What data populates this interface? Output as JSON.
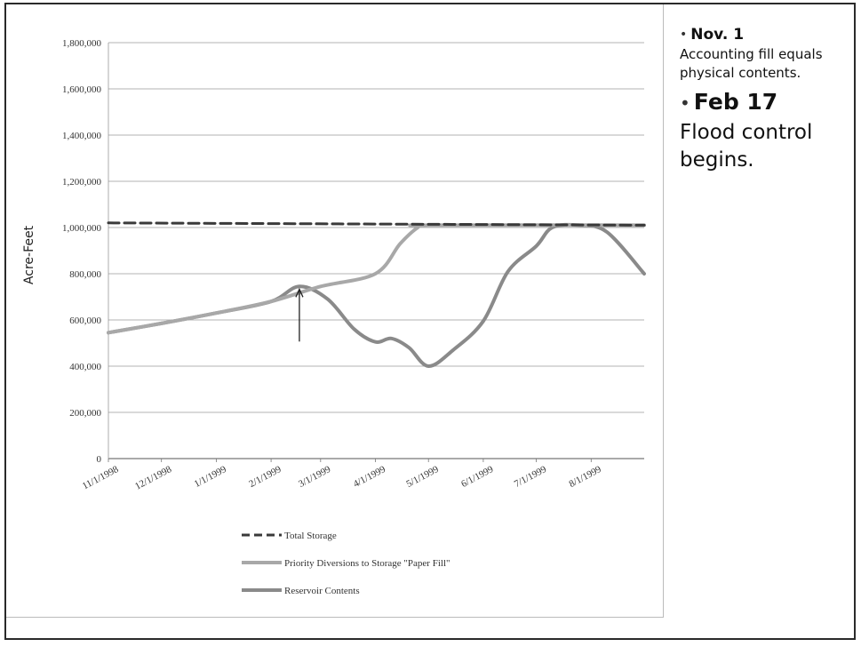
{
  "chart_data": {
    "type": "line",
    "title": "",
    "xlabel": "",
    "ylabel": "Acre-Feet",
    "ylim": [
      0,
      1800000
    ],
    "y_ticks": [
      0,
      200000,
      400000,
      600000,
      800000,
      1000000,
      1200000,
      1400000,
      1600000,
      1800000
    ],
    "y_tick_labels": [
      "0",
      "200,000",
      "400,000",
      "600,000",
      "800,000",
      "1,000,000",
      "1,200,000",
      "1,400,000",
      "1,600,000",
      "1,800,000"
    ],
    "x_tick_labels": [
      "11/1/1998",
      "12/1/1998",
      "1/1/1999",
      "2/1/1999",
      "3/1/1999",
      "4/1/1999",
      "5/1/1999",
      "6/1/1999",
      "7/1/1999",
      "8/1/1999"
    ],
    "x_range": [
      "1998-11-01",
      "1999-08-31"
    ],
    "grid": true,
    "legend_position": "bottom",
    "series": [
      {
        "name": "Total Storage",
        "style": "dashed",
        "color": "#3a3a3a",
        "points": [
          [
            "1998-11-01",
            1020000
          ],
          [
            "1999-08-31",
            1010000
          ]
        ]
      },
      {
        "name": "Priority Diversions to Storage \"Paper Fill\"",
        "style": "solid",
        "color": "#a8a8a8",
        "points": [
          [
            "1998-11-01",
            545000
          ],
          [
            "1998-12-01",
            585000
          ],
          [
            "1999-01-01",
            630000
          ],
          [
            "1999-02-01",
            680000
          ],
          [
            "1999-03-01",
            745000
          ],
          [
            "1999-04-01",
            800000
          ],
          [
            "1999-04-15",
            930000
          ],
          [
            "1999-04-25",
            1000000
          ],
          [
            "1999-05-01",
            1010000
          ],
          [
            "1999-08-31",
            1010000
          ]
        ]
      },
      {
        "name": "Reservoir Contents",
        "style": "solid",
        "color": "#8a8a8a",
        "points": [
          [
            "1998-11-01",
            545000
          ],
          [
            "1998-12-01",
            585000
          ],
          [
            "1999-01-01",
            630000
          ],
          [
            "1999-02-01",
            680000
          ],
          [
            "1999-02-17",
            745000
          ],
          [
            "1999-03-05",
            690000
          ],
          [
            "1999-03-20",
            560000
          ],
          [
            "1999-04-01",
            505000
          ],
          [
            "1999-04-10",
            520000
          ],
          [
            "1999-04-20",
            480000
          ],
          [
            "1999-05-01",
            400000
          ],
          [
            "1999-05-15",
            470000
          ],
          [
            "1999-06-01",
            595000
          ],
          [
            "1999-06-15",
            810000
          ],
          [
            "1999-07-01",
            920000
          ],
          [
            "1999-07-10",
            1000000
          ],
          [
            "1999-07-25",
            1010000
          ],
          [
            "1999-08-10",
            980000
          ],
          [
            "1999-08-31",
            800000
          ]
        ]
      }
    ],
    "annotations": [
      {
        "type": "arrow",
        "points_to": [
          "1999-02-17",
          745000
        ]
      }
    ]
  },
  "notes": {
    "bullet": "•",
    "first_head": "Nov. 1",
    "first_body": "Accounting fill equals physical contents.",
    "second_head": "Feb 17",
    "second_body": "Flood control begins."
  }
}
